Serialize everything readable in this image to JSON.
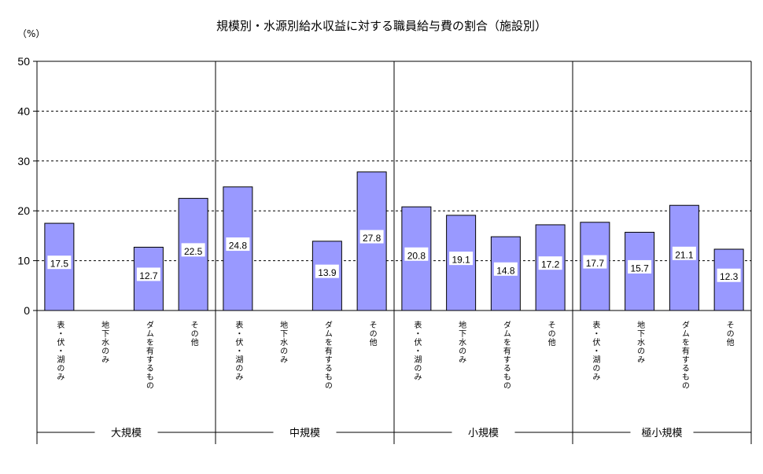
{
  "chart_data": {
    "type": "bar",
    "title": "規模別・水源別給水収益に対する職員給与費の割合（施設別）",
    "unit_label": "（%）",
    "ylim": [
      0,
      50
    ],
    "yticks": [
      "0",
      "10",
      "20",
      "30",
      "40",
      "50"
    ],
    "grid": true,
    "colors": {
      "bar_fill": "#9999ff",
      "bar_stroke": "#000000",
      "grid": "#000000"
    },
    "categories": [
      "表・伏・湖のみ",
      "地下水のみ",
      "ダムを有するもの",
      "その他"
    ],
    "groups": [
      {
        "name": "大規模",
        "values": [
          17.5,
          null,
          12.7,
          22.5
        ],
        "labels": [
          "17.5",
          "",
          "12.7",
          "22.5"
        ]
      },
      {
        "name": "中規模",
        "values": [
          24.8,
          null,
          13.9,
          27.8
        ],
        "labels": [
          "24.8",
          "",
          "13.9",
          "27.8"
        ]
      },
      {
        "name": "小規模",
        "values": [
          20.8,
          19.1,
          14.8,
          17.2
        ],
        "labels": [
          "20.8",
          "19.1",
          "14.8",
          "17.2"
        ]
      },
      {
        "name": "極小規模",
        "values": [
          17.7,
          15.7,
          21.1,
          12.3
        ],
        "labels": [
          "17.7",
          "15.7",
          "21.1",
          "12.3"
        ]
      }
    ]
  }
}
